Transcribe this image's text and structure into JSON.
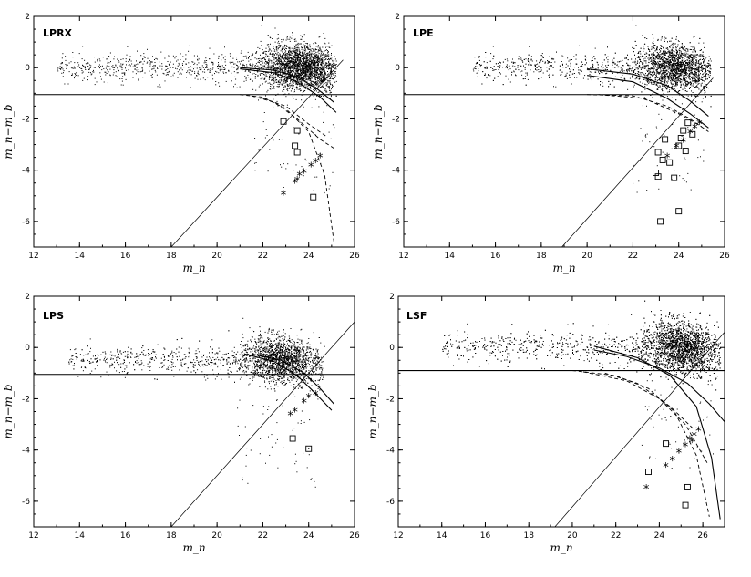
{
  "colors": {
    "ink": "#000000",
    "background": "#ffffff"
  },
  "chart_data": [
    {
      "type": "scatter",
      "panel_label": "LPRX",
      "xlabel": "m_n",
      "ylabel": "m_n−m_b",
      "xlim": [
        12,
        26
      ],
      "ylim": [
        -7,
        2
      ],
      "xticks": [
        12,
        14,
        16,
        18,
        20,
        22,
        24,
        26
      ],
      "yticks": [
        2,
        0,
        -2,
        -4,
        -6
      ],
      "cloud": {
        "x_start": 13,
        "x_peak": 23.6,
        "x_end": 25,
        "y_center": 0.05,
        "spread": 0.45,
        "count": 3200
      },
      "hline": -1.05,
      "diagonal": [
        [
          18,
          -7
        ],
        [
          25.5,
          0.3
        ]
      ],
      "curves_solid": [
        [
          [
            21,
            -0.05
          ],
          [
            22.5,
            -0.2
          ],
          [
            23.5,
            -0.55
          ],
          [
            24.5,
            -1.15
          ],
          [
            25.2,
            -1.75
          ]
        ],
        [
          [
            21,
            0.0
          ],
          [
            22.5,
            -0.1
          ],
          [
            23.5,
            -0.35
          ],
          [
            24.4,
            -0.85
          ],
          [
            25.1,
            -1.35
          ]
        ]
      ],
      "curves_dashed": [
        [
          [
            21,
            -1.05
          ],
          [
            22,
            -1.15
          ],
          [
            23,
            -1.6
          ],
          [
            24,
            -2.5
          ],
          [
            24.7,
            -4.2
          ],
          [
            25.1,
            -6.8
          ]
        ],
        [
          [
            21.5,
            -1.1
          ],
          [
            22.5,
            -1.35
          ],
          [
            23.5,
            -2
          ],
          [
            24.5,
            -2.8
          ],
          [
            25.2,
            -3.2
          ]
        ],
        [
          [
            22,
            -1.2
          ],
          [
            23,
            -1.5
          ],
          [
            24,
            -2.2
          ],
          [
            24.8,
            -2.7
          ]
        ]
      ],
      "squares": [
        [
          22.9,
          -2.1
        ],
        [
          23.5,
          -2.45
        ],
        [
          23.4,
          -3.05
        ],
        [
          23.5,
          -3.3
        ],
        [
          24.2,
          -5.05
        ]
      ],
      "stars": [
        [
          22.9,
          -4.95
        ],
        [
          23.4,
          -4.5
        ],
        [
          23.5,
          -4.4
        ],
        [
          23.8,
          -4.1
        ],
        [
          24.1,
          -3.85
        ],
        [
          24.3,
          -3.7
        ],
        [
          24.5,
          -3.5
        ],
        [
          23.6,
          -4.2
        ]
      ]
    },
    {
      "type": "scatter",
      "panel_label": "LPE",
      "xlabel": "m_n",
      "ylabel": "m_n−m_b",
      "xlim": [
        12,
        26
      ],
      "ylim": [
        -7,
        2
      ],
      "xticks": [
        12,
        14,
        16,
        18,
        20,
        22,
        24,
        26
      ],
      "yticks": [
        2,
        0,
        -2,
        -4,
        -6
      ],
      "cloud": {
        "x_start": 15,
        "x_peak": 23.8,
        "x_end": 25.2,
        "y_center": 0.05,
        "spread": 0.45,
        "count": 3400
      },
      "hline": -1.05,
      "diagonal": [
        [
          18.9,
          -7
        ],
        [
          25.5,
          -0.4
        ]
      ],
      "curves_solid": [
        [
          [
            20,
            -0.05
          ],
          [
            22,
            -0.25
          ],
          [
            23.5,
            -0.7
          ],
          [
            24.5,
            -1.3
          ],
          [
            25.3,
            -1.9
          ]
        ],
        [
          [
            20,
            -0.3
          ],
          [
            22,
            -0.55
          ],
          [
            23.5,
            -1.2
          ],
          [
            24.5,
            -1.8
          ],
          [
            25.3,
            -2.35
          ]
        ]
      ],
      "curves_dashed": [
        [
          [
            20,
            -1.05
          ],
          [
            22,
            -1.1
          ],
          [
            23.5,
            -1.5
          ],
          [
            24.5,
            -2.0
          ],
          [
            25.3,
            -2.5
          ]
        ],
        [
          [
            20.5,
            -1.05
          ],
          [
            22.5,
            -1.2
          ],
          [
            24,
            -1.8
          ],
          [
            25,
            -2.3
          ]
        ]
      ],
      "squares": [
        [
          23.1,
          -3.3
        ],
        [
          23.3,
          -3.6
        ],
        [
          23.6,
          -3.7
        ],
        [
          23.4,
          -2.8
        ],
        [
          23.0,
          -4.1
        ],
        [
          23.1,
          -4.25
        ],
        [
          23.8,
          -4.3
        ],
        [
          24.0,
          -3.05
        ],
        [
          24.2,
          -2.45
        ],
        [
          24.4,
          -2.15
        ],
        [
          24.6,
          -2.6
        ],
        [
          24.3,
          -3.25
        ],
        [
          24.0,
          -5.6
        ],
        [
          23.2,
          -6.0
        ],
        [
          24.1,
          -2.75
        ]
      ],
      "stars": [
        [
          23.5,
          -3.5
        ],
        [
          24.2,
          -2.9
        ],
        [
          24.5,
          -2.55
        ],
        [
          24.7,
          -2.35
        ],
        [
          24.9,
          -2.2
        ],
        [
          23.9,
          -3.1
        ]
      ]
    },
    {
      "type": "scatter",
      "panel_label": "LPS",
      "xlabel": "m_n",
      "ylabel": "m_n−m_b",
      "xlim": [
        12,
        26
      ],
      "ylim": [
        -7,
        2
      ],
      "xticks": [
        12,
        14,
        16,
        18,
        20,
        22,
        24,
        26
      ],
      "yticks": [
        2,
        0,
        -2,
        -4,
        -6
      ],
      "cloud": {
        "x_start": 13.5,
        "x_peak": 22.8,
        "x_end": 24.5,
        "y_center": -0.45,
        "spread": 0.45,
        "count": 3000
      },
      "hline": -1.05,
      "diagonal": [
        [
          18,
          -7
        ],
        [
          26,
          1.0
        ]
      ],
      "curves_solid": [
        [
          [
            21.2,
            -0.25
          ],
          [
            22.5,
            -0.55
          ],
          [
            23.5,
            -1.1
          ],
          [
            24.3,
            -1.8
          ],
          [
            25,
            -2.45
          ]
        ],
        [
          [
            21.5,
            -0.25
          ],
          [
            22.8,
            -0.5
          ],
          [
            23.8,
            -1.0
          ],
          [
            24.5,
            -1.6
          ],
          [
            25.1,
            -2.2
          ]
        ]
      ],
      "curves_dashed": [],
      "squares": [
        [
          23.3,
          -3.55
        ],
        [
          24.0,
          -3.95
        ]
      ],
      "stars": [
        [
          23.2,
          -2.65
        ],
        [
          23.4,
          -2.5
        ],
        [
          23.8,
          -2.15
        ],
        [
          24.0,
          -1.95
        ],
        [
          24.3,
          -1.85
        ]
      ]
    },
    {
      "type": "scatter",
      "panel_label": "LSF",
      "xlabel": "m_n",
      "ylabel": "m_n−m_b",
      "xlim": [
        12,
        27
      ],
      "ylim": [
        -7,
        2
      ],
      "xticks": [
        12,
        14,
        16,
        18,
        20,
        22,
        24,
        26
      ],
      "yticks": [
        2,
        0,
        -2,
        -4,
        -6
      ],
      "cloud": {
        "x_start": 14,
        "x_peak": 25,
        "x_end": 26.6,
        "y_center": 0.05,
        "spread": 0.5,
        "count": 4200
      },
      "hline": -0.9,
      "diagonal": [
        [
          19.2,
          -7
        ],
        [
          27,
          0.6
        ]
      ],
      "curves_solid": [
        [
          [
            21,
            0.05
          ],
          [
            23,
            -0.4
          ],
          [
            24.5,
            -1.1
          ],
          [
            25.7,
            -2.3
          ],
          [
            26.4,
            -4.3
          ],
          [
            26.8,
            -6.7
          ]
        ],
        [
          [
            21,
            -0.1
          ],
          [
            22.5,
            -0.35
          ],
          [
            24,
            -0.8
          ],
          [
            25.3,
            -1.4
          ],
          [
            26.3,
            -2.2
          ],
          [
            27,
            -2.9
          ]
        ]
      ],
      "curves_dashed": [
        [
          [
            20,
            -0.9
          ],
          [
            22,
            -1.1
          ],
          [
            23.5,
            -1.6
          ],
          [
            24.7,
            -2.5
          ],
          [
            25.7,
            -4.2
          ],
          [
            26.3,
            -6.6
          ]
        ],
        [
          [
            20.5,
            -0.95
          ],
          [
            22.5,
            -1.3
          ],
          [
            24,
            -2.0
          ],
          [
            25.2,
            -3.0
          ],
          [
            26.2,
            -4.5
          ]
        ],
        [
          [
            21.5,
            -1.0
          ],
          [
            23,
            -1.4
          ],
          [
            24.5,
            -2.3
          ],
          [
            25.6,
            -3.2
          ]
        ]
      ],
      "squares": [
        [
          23.5,
          -4.85
        ],
        [
          24.3,
          -3.75
        ],
        [
          25.3,
          -5.45
        ],
        [
          25.2,
          -6.15
        ]
      ],
      "stars": [
        [
          23.4,
          -5.5
        ],
        [
          24.3,
          -4.65
        ],
        [
          24.6,
          -4.4
        ],
        [
          24.9,
          -4.1
        ],
        [
          25.2,
          -3.85
        ],
        [
          25.4,
          -3.6
        ],
        [
          25.6,
          -3.45
        ],
        [
          25.8,
          -3.25
        ],
        [
          25.5,
          -3.7
        ]
      ]
    }
  ]
}
